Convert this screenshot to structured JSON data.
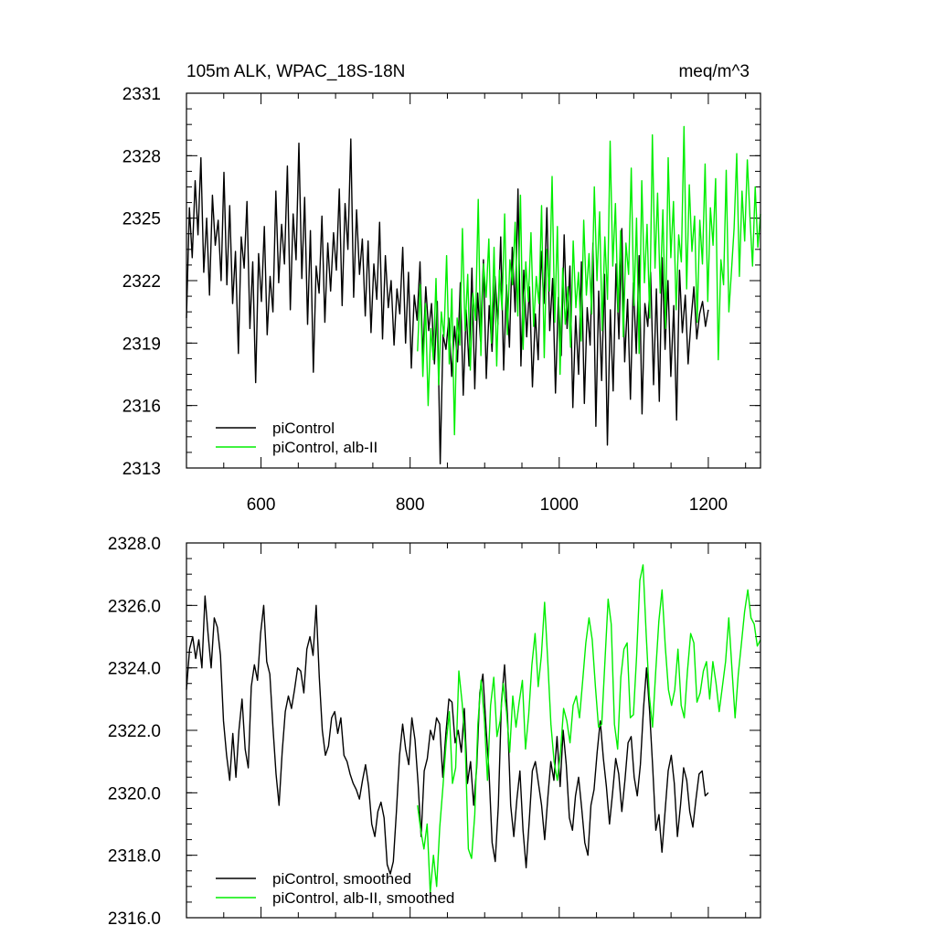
{
  "chart_data": [
    {
      "type": "line",
      "title": "105m ALK, WPAC_18S-18N",
      "units": "meq/m^3",
      "xlabel": "",
      "ylabel": "",
      "xlim": [
        500,
        1270
      ],
      "ylim": [
        2313,
        2331
      ],
      "xticks": [
        "600",
        "800",
        "1000",
        "1200"
      ],
      "yticks": [
        "2313",
        "2316",
        "2319",
        "2322",
        "2325",
        "2328",
        "2331"
      ],
      "legend_position": "bottom-left",
      "series": [
        {
          "name": "piControl",
          "color": "#000000",
          "x_start": 500,
          "x_end": 1200,
          "values": [
            2320.2,
            2325.5,
            2323.1,
            2326.8,
            2324.2,
            2327.9,
            2322.4,
            2325.0,
            2321.3,
            2326.1,
            2323.7,
            2324.9,
            2322.0,
            2327.2,
            2321.8,
            2325.6,
            2320.9,
            2323.4,
            2318.5,
            2324.1,
            2322.6,
            2325.8,
            2319.7,
            2322.9,
            2317.1,
            2323.3,
            2321.0,
            2324.6,
            2319.4,
            2322.2,
            2320.5,
            2326.3,
            2321.9,
            2324.7,
            2322.8,
            2327.5,
            2320.6,
            2325.2,
            2323.0,
            2328.6,
            2322.1,
            2326.0,
            2319.9,
            2324.4,
            2317.6,
            2322.7,
            2321.4,
            2325.1,
            2320.0,
            2323.8,
            2321.5,
            2324.3,
            2322.5,
            2326.4,
            2320.8,
            2325.7,
            2323.5,
            2328.8,
            2321.2,
            2325.4,
            2322.3,
            2324.0,
            2320.3,
            2323.9,
            2319.5,
            2322.8,
            2321.1,
            2324.8,
            2319.2,
            2323.2,
            2320.7,
            2322.0,
            2318.9,
            2321.6,
            2320.4,
            2323.6,
            2319.0,
            2322.4,
            2317.8,
            2321.3,
            2320.1,
            2322.9,
            2318.3,
            2321.7,
            2319.6,
            2320.9,
            2318.0,
            2321.0,
            2313.2,
            2319.4,
            2318.7,
            2320.2,
            2317.4,
            2319.8,
            2318.1,
            2321.9,
            2316.5,
            2320.6,
            2317.9,
            2322.6,
            2316.8,
            2321.4,
            2319.1,
            2323.0,
            2317.3,
            2320.8,
            2318.6,
            2322.2,
            2319.9,
            2324.1,
            2317.7,
            2321.8,
            2318.8,
            2323.6,
            2320.5,
            2326.4,
            2317.9,
            2322.5,
            2319.3,
            2321.7,
            2316.9,
            2320.4,
            2318.2,
            2323.4,
            2320.9,
            2325.5,
            2319.6,
            2322.1,
            2316.6,
            2321.2,
            2318.4,
            2324.2,
            2319.7,
            2322.7,
            2315.9,
            2320.3,
            2317.5,
            2322.9,
            2316.1,
            2320.7,
            2318.9,
            2323.8,
            2315.0,
            2321.5,
            2317.2,
            2322.3,
            2314.1,
            2320.6,
            2316.7,
            2322.8,
            2319.2,
            2324.5,
            2318.1,
            2321.1,
            2316.3,
            2321.9,
            2318.5,
            2323.2,
            2315.6,
            2320.9,
            2319.8,
            2322.4,
            2317.0,
            2321.6,
            2316.2,
            2323.1,
            2318.7,
            2322.0,
            2317.4,
            2320.8,
            2315.3,
            2322.5,
            2319.5,
            2321.3,
            2318.0,
            2320.1,
            2321.7,
            2319.2,
            2320.4,
            2321.0,
            2319.8,
            2320.6
          ]
        },
        {
          "name": "piControl, alb-II",
          "color": "#00ee00",
          "x_start": 810,
          "x_end": 1270,
          "values": [
            2318.6,
            2321.8,
            2317.4,
            2320.9,
            2316.0,
            2319.7,
            2318.2,
            2322.1,
            2317.0,
            2320.5,
            2319.3,
            2323.2,
            2318.0,
            2321.6,
            2314.6,
            2320.2,
            2318.9,
            2324.5,
            2319.6,
            2322.3,
            2317.7,
            2321.4,
            2320.1,
            2325.9,
            2318.4,
            2322.8,
            2321.2,
            2324.0,
            2319.0,
            2323.6,
            2317.9,
            2322.5,
            2320.6,
            2325.2,
            2319.4,
            2323.0,
            2321.8,
            2324.8,
            2320.3,
            2326.1,
            2318.7,
            2322.9,
            2321.0,
            2324.3,
            2319.8,
            2322.2,
            2320.9,
            2325.6,
            2318.3,
            2323.5,
            2321.5,
            2327.0,
            2320.0,
            2324.6,
            2317.5,
            2322.6,
            2319.9,
            2321.7,
            2318.8,
            2323.9,
            2320.7,
            2322.4,
            2319.1,
            2324.9,
            2321.3,
            2323.3,
            2320.4,
            2326.5,
            2322.0,
            2325.3,
            2319.6,
            2324.1,
            2321.1,
            2328.7,
            2322.7,
            2325.7,
            2320.5,
            2324.4,
            2319.3,
            2323.8,
            2322.3,
            2327.4,
            2320.8,
            2325.0,
            2318.5,
            2326.8,
            2321.9,
            2324.7,
            2320.2,
            2329.0,
            2322.6,
            2326.2,
            2321.4,
            2325.4,
            2319.7,
            2327.9,
            2323.1,
            2325.8,
            2320.6,
            2324.2,
            2322.9,
            2329.4,
            2321.6,
            2326.6,
            2323.4,
            2325.1,
            2320.0,
            2324.9,
            2322.8,
            2327.6,
            2321.0,
            2325.5,
            2323.7,
            2326.9,
            2318.2,
            2323.0,
            2321.8,
            2327.3,
            2320.5,
            2322.5,
            2324.5,
            2328.1,
            2322.2,
            2326.3,
            2323.9,
            2327.8,
            2325.0,
            2322.7,
            2326.5,
            2323.6,
            2325.2
          ]
        }
      ]
    },
    {
      "type": "line",
      "title": "",
      "xlabel": "",
      "ylabel": "",
      "xlim": [
        500,
        1270
      ],
      "ylim": [
        2316.0,
        2328.0
      ],
      "yticks": [
        "2316.0",
        "2318.0",
        "2320.0",
        "2322.0",
        "2324.0",
        "2326.0",
        "2328.0"
      ],
      "legend_position": "bottom-left",
      "series": [
        {
          "name": "piControl, smoothed",
          "color": "#000000",
          "x_start": 500,
          "x_end": 1200,
          "values": [
            2323.3,
            2324.6,
            2325.0,
            2324.3,
            2324.9,
            2324.0,
            2326.3,
            2325.1,
            2324.0,
            2325.6,
            2325.3,
            2324.4,
            2322.3,
            2321.2,
            2320.4,
            2321.9,
            2320.5,
            2322.0,
            2323.0,
            2321.4,
            2320.8,
            2323.4,
            2324.1,
            2323.6,
            2325.1,
            2326.0,
            2324.2,
            2323.8,
            2322.1,
            2320.6,
            2319.6,
            2321.3,
            2322.6,
            2323.1,
            2322.7,
            2323.3,
            2324.0,
            2323.9,
            2323.2,
            2324.6,
            2325.0,
            2324.4,
            2326.0,
            2323.7,
            2322.0,
            2321.2,
            2321.5,
            2322.4,
            2322.6,
            2321.9,
            2322.4,
            2321.2,
            2321.0,
            2320.6,
            2320.3,
            2320.1,
            2319.8,
            2320.4,
            2320.9,
            2320.2,
            2319.0,
            2318.6,
            2319.4,
            2319.7,
            2319.2,
            2317.7,
            2317.4,
            2317.8,
            2319.4,
            2321.2,
            2322.2,
            2321.4,
            2320.9,
            2322.4,
            2321.7,
            2320.3,
            2318.6,
            2320.7,
            2321.1,
            2322.0,
            2321.7,
            2322.4,
            2322.2,
            2320.5,
            2321.9,
            2323.0,
            2322.9,
            2321.6,
            2322.0,
            2321.3,
            2322.7,
            2320.3,
            2321.0,
            2319.6,
            2320.8,
            2323.2,
            2323.8,
            2322.1,
            2320.6,
            2318.4,
            2317.8,
            2319.6,
            2322.9,
            2324.1,
            2322.4,
            2319.6,
            2318.6,
            2319.8,
            2320.7,
            2318.8,
            2317.6,
            2319.1,
            2320.7,
            2321.0,
            2320.3,
            2319.6,
            2318.5,
            2319.8,
            2321.0,
            2320.4,
            2321.8,
            2320.2,
            2322.0,
            2320.9,
            2319.2,
            2318.8,
            2319.9,
            2320.5,
            2319.5,
            2318.4,
            2318.0,
            2319.6,
            2320.1,
            2321.3,
            2322.3,
            2321.1,
            2320.2,
            2319.0,
            2320.0,
            2321.1,
            2320.6,
            2319.4,
            2320.4,
            2321.6,
            2321.8,
            2320.5,
            2319.9,
            2320.9,
            2322.7,
            2324.0,
            2322.6,
            2320.8,
            2318.8,
            2319.3,
            2318.1,
            2319.4,
            2320.7,
            2321.2,
            2320.3,
            2318.6,
            2319.6,
            2320.8,
            2320.4,
            2319.4,
            2318.9,
            2319.8,
            2320.6,
            2320.7,
            2319.9,
            2320.0
          ]
        },
        {
          "name": "piControl, alb-II, smoothed",
          "color": "#00ee00",
          "x_start": 810,
          "x_end": 1270,
          "values": [
            2319.6,
            2318.8,
            2318.2,
            2319.0,
            2316.8,
            2318.0,
            2317.0,
            2318.9,
            2320.2,
            2321.6,
            2322.6,
            2320.3,
            2320.8,
            2323.9,
            2322.9,
            2321.6,
            2318.2,
            2317.9,
            2319.3,
            2322.2,
            2323.6,
            2322.4,
            2320.4,
            2322.8,
            2323.7,
            2321.8,
            2322.3,
            2323.5,
            2322.6,
            2321.3,
            2323.1,
            2322.1,
            2322.9,
            2323.6,
            2321.4,
            2322.5,
            2324.1,
            2325.1,
            2323.4,
            2324.4,
            2326.1,
            2324.2,
            2322.2,
            2321.0,
            2320.4,
            2321.3,
            2322.7,
            2322.3,
            2321.6,
            2322.8,
            2323.1,
            2322.4,
            2323.6,
            2324.8,
            2325.6,
            2324.9,
            2323.4,
            2322.1,
            2322.2,
            2324.2,
            2326.2,
            2325.4,
            2322.2,
            2321.4,
            2323.7,
            2324.6,
            2324.8,
            2322.4,
            2322.5,
            2324.4,
            2326.8,
            2327.3,
            2325.1,
            2323.1,
            2322.1,
            2323.9,
            2325.5,
            2326.5,
            2324.7,
            2323.3,
            2322.8,
            2323.3,
            2324.6,
            2322.8,
            2322.4,
            2323.9,
            2325.1,
            2324.8,
            2322.9,
            2323.2,
            2323.9,
            2324.2,
            2323.0,
            2324.2,
            2323.5,
            2322.6,
            2323.4,
            2324.2,
            2325.6,
            2324.0,
            2322.4,
            2323.8,
            2324.8,
            2325.8,
            2326.5,
            2325.6,
            2325.4,
            2324.7,
            2324.9
          ]
        }
      ]
    }
  ]
}
